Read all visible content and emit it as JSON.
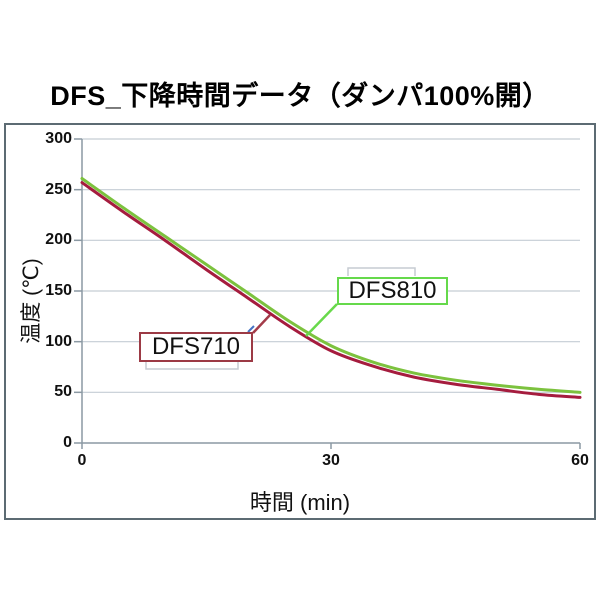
{
  "title": "DFS_下降時間データ（ダンパ100%開）",
  "colors": {
    "series_dfs710": "#a51c3e",
    "series_dfs810": "#7cc23e",
    "label_border_dfs710": "#9c3a45",
    "label_border_dfs810": "#65d94b",
    "leader_dfs710": "#a33b49",
    "leader_dfs810": "#68d94b",
    "blue_mark": "#4472c4"
  },
  "chart_data": {
    "type": "line",
    "title": "DFS_下降時間データ（ダンパ100%開）",
    "xlabel": "時間 (min)",
    "ylabel": "温度 (℃)",
    "xlim": [
      0,
      60
    ],
    "ylim": [
      0,
      300
    ],
    "xticks": [
      0,
      30,
      60
    ],
    "yticks": [
      0,
      50,
      100,
      150,
      200,
      250,
      300
    ],
    "grid": true,
    "legend_position": "inline-callouts",
    "x": [
      0,
      5,
      10,
      15,
      20,
      25,
      30,
      35,
      40,
      45,
      50,
      55,
      60
    ],
    "series": [
      {
        "name": "DFS710",
        "color": "#a51c3e",
        "values": [
          257,
          228,
          200,
          171,
          143,
          115,
          91,
          76,
          65,
          58,
          53,
          48,
          45
        ]
      },
      {
        "name": "DFS810",
        "color": "#7cc23e",
        "values": [
          261,
          232,
          204,
          176,
          148,
          120,
          96,
          80,
          69,
          62,
          57,
          53,
          50
        ]
      }
    ]
  }
}
